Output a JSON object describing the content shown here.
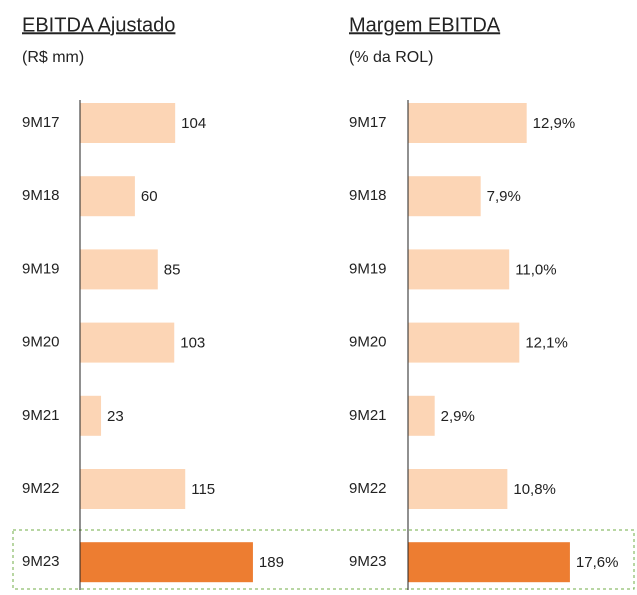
{
  "chart_data": [
    {
      "type": "bar",
      "orientation": "horizontal",
      "title": "EBITDA Ajustado",
      "subtitle": "(R$ mm)",
      "categories": [
        "9M17",
        "9M18",
        "9M19",
        "9M20",
        "9M21",
        "9M22",
        "9M23"
      ],
      "values": [
        104,
        60,
        85,
        103,
        23,
        115,
        189
      ],
      "colors": [
        "#fcd5b5",
        "#fcd5b5",
        "#fcd5b5",
        "#fcd5b5",
        "#fcd5b5",
        "#fcd5b5",
        "#ed7d31"
      ],
      "xlim": [
        0,
        200
      ]
    },
    {
      "type": "bar",
      "orientation": "horizontal",
      "title": "Margem EBITDA",
      "subtitle": "(% da ROL)",
      "categories": [
        "9M17",
        "9M18",
        "9M19",
        "9M20",
        "9M21",
        "9M22",
        "9M23"
      ],
      "values": [
        12.9,
        7.9,
        11.0,
        12.1,
        2.9,
        10.8,
        17.6
      ],
      "value_labels": [
        "12,9%",
        "7,9%",
        "11,0%",
        "12,1%",
        "2,9%",
        "10,8%",
        "17,6%"
      ],
      "colors": [
        "#fcd5b5",
        "#fcd5b5",
        "#fcd5b5",
        "#fcd5b5",
        "#fcd5b5",
        "#fcd5b5",
        "#ed7d31"
      ],
      "xlim": [
        0,
        20
      ]
    }
  ]
}
